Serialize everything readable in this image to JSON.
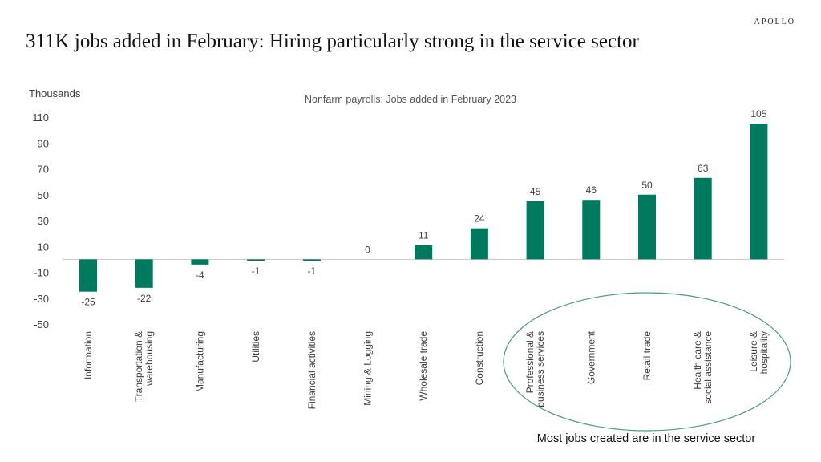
{
  "brand": "APOLLO",
  "title": "311K jobs added in February: Hiring particularly strong in the service sector",
  "colors": {
    "bar": "#007a5e",
    "circle": "#4a9c8c",
    "text": "#404040"
  },
  "chart_data": {
    "type": "bar",
    "subtitle": "Nonfarm payrolls: Jobs added in February 2023",
    "ylabel": "Thousands",
    "ylim": [
      -50,
      110
    ],
    "yticks": [
      110,
      90,
      70,
      50,
      30,
      10,
      -10,
      -30,
      -50
    ],
    "grid": false,
    "categories": [
      "Information",
      "Transportation & warehousing",
      "Manufacturing",
      "Utilities",
      "Financial activities",
      "Mining & Logging",
      "Wholesale trade",
      "Construction",
      "Professional & business services",
      "Government",
      "Retail trade",
      "Health care & social assistance",
      "Leisure & hospitality"
    ],
    "category_lines": [
      [
        "Information"
      ],
      [
        "Transportation &",
        "warehousing"
      ],
      [
        "Manufacturing"
      ],
      [
        "Utilities"
      ],
      [
        "Financial activities"
      ],
      [
        "Mining & Logging"
      ],
      [
        "Wholesale trade"
      ],
      [
        "Construction"
      ],
      [
        "Professional &",
        "business services"
      ],
      [
        "Government"
      ],
      [
        "Retail trade"
      ],
      [
        "Health care &",
        "social assistance"
      ],
      [
        "Leisure &",
        "hospitality"
      ]
    ],
    "values": [
      -25,
      -22,
      -4,
      -1,
      -1,
      0,
      11,
      24,
      45,
      46,
      50,
      63,
      105
    ],
    "annotation": "Most jobs created are in the service sector"
  }
}
